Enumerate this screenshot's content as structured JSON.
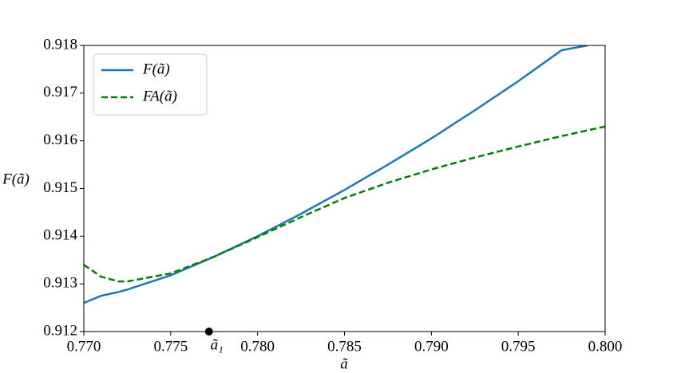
{
  "chart_data": {
    "type": "line",
    "x_label": "ã",
    "y_label": "F(ã)",
    "x": [
      0.77,
      0.771,
      0.772,
      0.7725,
      0.775,
      0.7775,
      0.78,
      0.7825,
      0.785,
      0.7875,
      0.79,
      0.7925,
      0.795,
      0.7975,
      0.799,
      0.8
    ],
    "series": [
      {
        "name": "F(ã)",
        "color": "#1f77b4",
        "dash": false,
        "values": [
          0.9126,
          0.91275,
          0.91283,
          0.91288,
          0.91318,
          0.91357,
          0.914,
          0.91447,
          0.91497,
          0.9155,
          0.91605,
          0.91664,
          0.91725,
          0.9179,
          0.918,
          null
        ]
      },
      {
        "name": "FA(ã)",
        "color": "#008000",
        "dash": true,
        "values": [
          0.9134,
          0.91315,
          0.91305,
          0.91305,
          0.91322,
          0.91357,
          0.91398,
          0.9144,
          0.9148,
          0.91512,
          0.9154,
          0.91565,
          0.91588,
          0.9161,
          0.91622,
          0.9163
        ]
      }
    ],
    "annotations": [
      {
        "label": "ã₁",
        "x": 0.7772,
        "y": 0.912
      }
    ],
    "xlim": [
      0.77,
      0.8
    ],
    "xticks": [
      {
        "value": 0.77,
        "label": "0.770"
      },
      0.775,
      {
        "value": 0.78,
        "label": "0.780"
      },
      0.785,
      {
        "value": 0.79,
        "label": "0.790"
      },
      0.795,
      {
        "value": 0.8,
        "label": "0.800"
      }
    ],
    "ylim": [
      0.912,
      0.918
    ],
    "yticks": [
      0.912,
      0.913,
      0.914,
      0.915,
      0.916,
      0.917,
      0.918
    ],
    "legend": "upper left",
    "grid": false
  }
}
